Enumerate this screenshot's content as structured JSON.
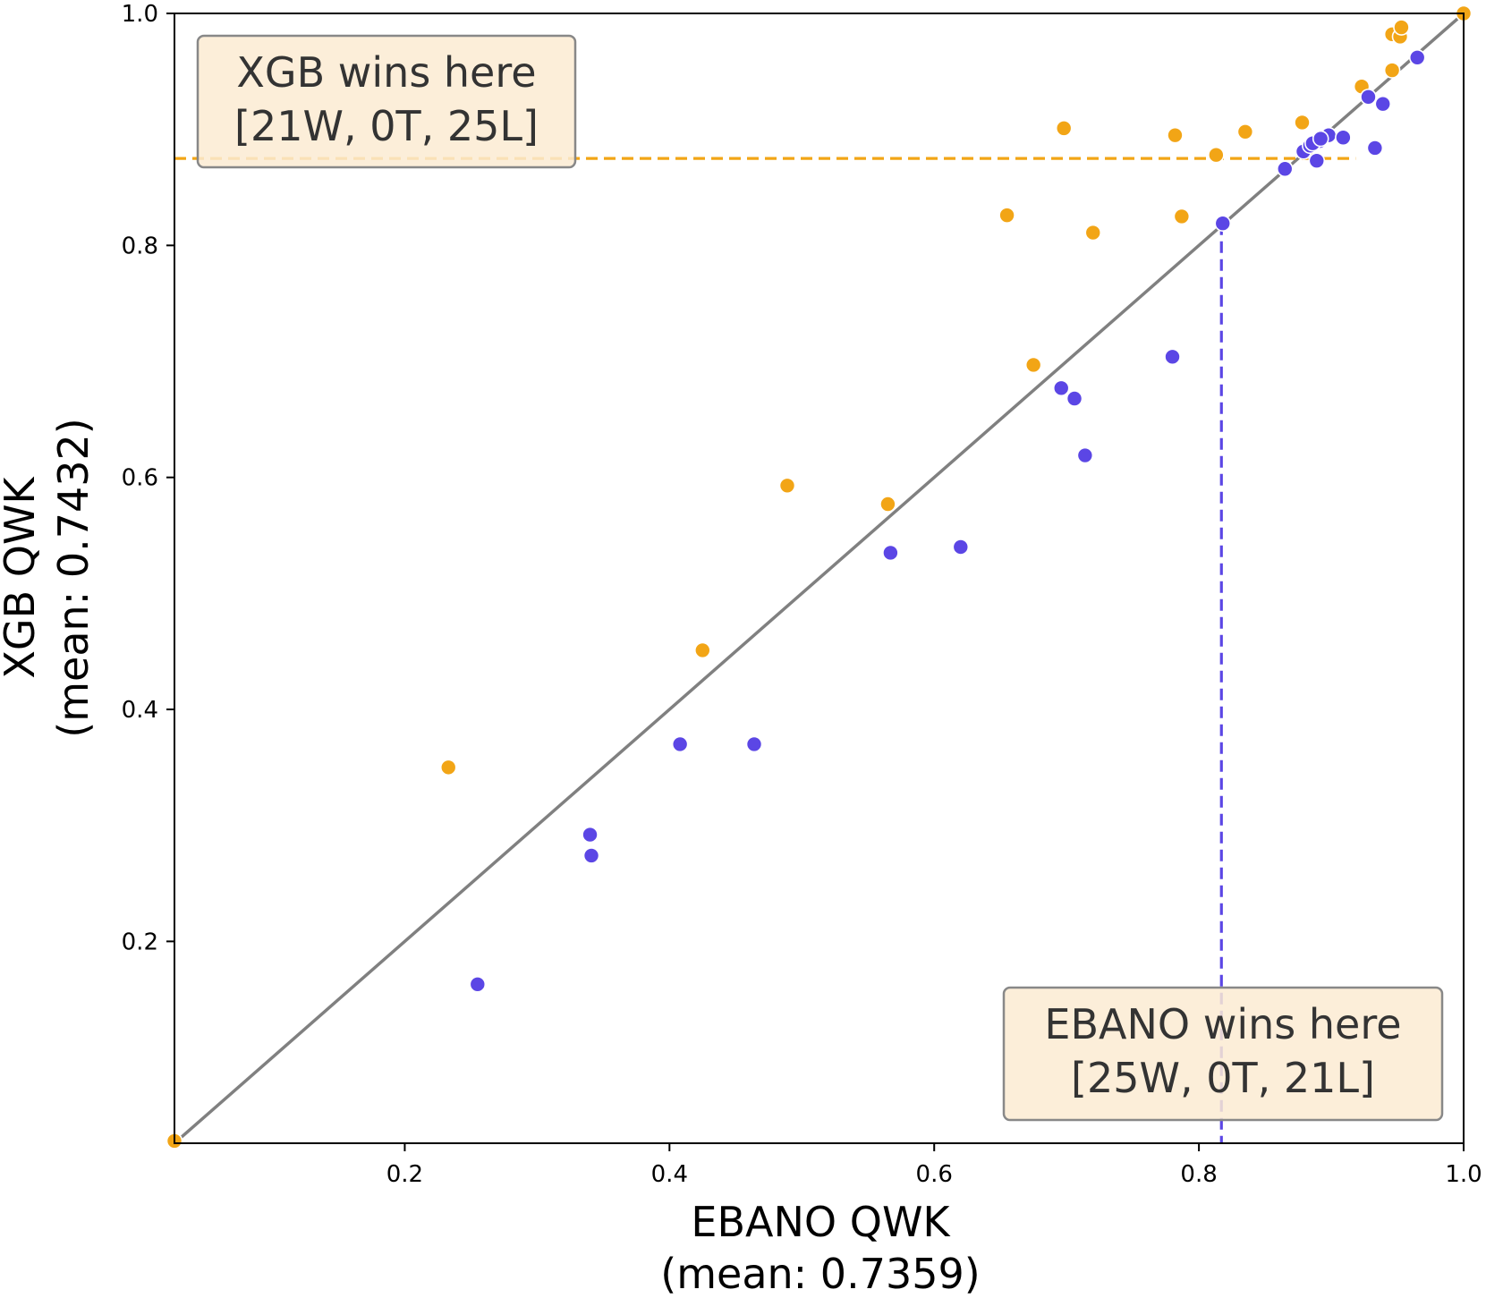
{
  "chart_data": {
    "type": "scatter",
    "xlabel": "EBANO QWK",
    "xlabel_mean": "(mean: 0.7359)",
    "ylabel": "XGB QWK",
    "ylabel_mean": "(mean: 0.7432)",
    "xlim": [
      0.026,
      1.0
    ],
    "ylim": [
      0.026,
      1.0
    ],
    "x_ticks": [
      0.2,
      0.4,
      0.6,
      0.8,
      1.0
    ],
    "x_tick_labels": [
      "0.2",
      "0.4",
      "0.6",
      "0.8",
      "1.0"
    ],
    "y_ticks": [
      0.2,
      0.4,
      0.6,
      0.8,
      1.0
    ],
    "y_tick_labels": [
      "0.2",
      "0.4",
      "0.6",
      "0.8",
      "1.0"
    ],
    "diagonal": {
      "from": [
        0.026,
        0.026
      ],
      "to": [
        1.0,
        1.0
      ],
      "color": "#808080"
    },
    "reference_lines": {
      "xgb_horizontal_y": 0.875,
      "ebano_vertical_x": 0.817
    },
    "annotations": {
      "xgb": {
        "line1": "XGB wins here",
        "line2": "[21W, 0T, 25L]",
        "placement": "top-left"
      },
      "ebano": {
        "line1": "EBANO wins here",
        "line2": "[25W, 0T, 21L]",
        "placement": "bottom-right"
      }
    },
    "colors": {
      "xgb": "#F2A516",
      "ebano": "#5B46E5",
      "box_fill": "#FBEBD2",
      "box_edge": "#888888"
    },
    "series": [
      {
        "name": "XGB wins",
        "color": "#F2A516",
        "points": [
          [
            0.026,
            0.028
          ],
          [
            0.233,
            0.35
          ],
          [
            0.425,
            0.451
          ],
          [
            0.489,
            0.593
          ],
          [
            0.565,
            0.577
          ],
          [
            0.655,
            0.826
          ],
          [
            0.675,
            0.697
          ],
          [
            0.698,
            0.901
          ],
          [
            0.72,
            0.811
          ],
          [
            0.782,
            0.895
          ],
          [
            0.787,
            0.825
          ],
          [
            0.813,
            0.878
          ],
          [
            0.835,
            0.898
          ],
          [
            0.878,
            0.906
          ],
          [
            0.882,
            0.882
          ],
          [
            0.923,
            0.937
          ],
          [
            0.946,
            0.951
          ],
          [
            0.946,
            0.982
          ],
          [
            0.952,
            0.98
          ],
          [
            0.953,
            0.988
          ],
          [
            1.0,
            1.0
          ]
        ]
      },
      {
        "name": "EBANO wins",
        "color": "#5B46E5",
        "points": [
          [
            0.255,
            0.163
          ],
          [
            0.34,
            0.292
          ],
          [
            0.341,
            0.274
          ],
          [
            0.408,
            0.37
          ],
          [
            0.464,
            0.37
          ],
          [
            0.567,
            0.535
          ],
          [
            0.62,
            0.54
          ],
          [
            0.696,
            0.677
          ],
          [
            0.706,
            0.668
          ],
          [
            0.714,
            0.619
          ],
          [
            0.78,
            0.704
          ],
          [
            0.818,
            0.819
          ],
          [
            0.865,
            0.866
          ],
          [
            0.879,
            0.881
          ],
          [
            0.884,
            0.886
          ],
          [
            0.889,
            0.873
          ],
          [
            0.891,
            0.89
          ],
          [
            0.898,
            0.895
          ],
          [
            0.909,
            0.893
          ],
          [
            0.928,
            0.928
          ],
          [
            0.933,
            0.884
          ],
          [
            0.939,
            0.922
          ],
          [
            0.965,
            0.962
          ],
          [
            0.886,
            0.888
          ],
          [
            0.892,
            0.892
          ]
        ]
      }
    ]
  }
}
